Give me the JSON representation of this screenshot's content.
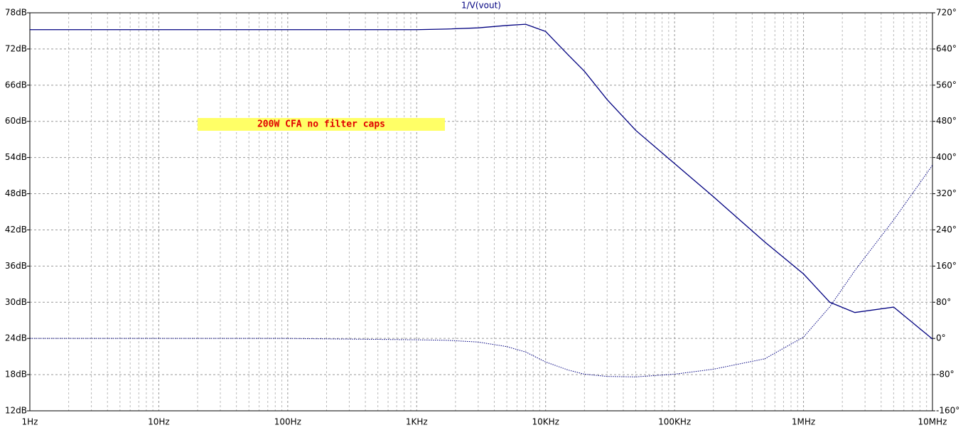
{
  "chart_data": {
    "type": "line",
    "title": "1/V(vout)",
    "annotation": "200W CFA no filter caps",
    "x_log": true,
    "grid": true,
    "x": [
      1,
      10,
      100,
      1000,
      1700,
      3000,
      5000,
      7000,
      10000,
      15000,
      20000,
      30000,
      50000,
      100000,
      200000,
      500000,
      1000000,
      1600000,
      2500000,
      5000000,
      10000000
    ],
    "xlim": [
      1,
      10000000
    ],
    "xticks": [
      {
        "value": 1,
        "label": "1Hz"
      },
      {
        "value": 10,
        "label": "10Hz"
      },
      {
        "value": 100,
        "label": "100Hz"
      },
      {
        "value": 1000,
        "label": "1KHz"
      },
      {
        "value": 10000,
        "label": "10KHz"
      },
      {
        "value": 100000,
        "label": "100KHz"
      },
      {
        "value": 1000000,
        "label": "1MHz"
      },
      {
        "value": 10000000,
        "label": "10MHz"
      }
    ],
    "ylim": [
      12,
      78
    ],
    "yticks": [
      {
        "value": 12,
        "label": "12dB"
      },
      {
        "value": 18,
        "label": "18dB"
      },
      {
        "value": 24,
        "label": "24dB"
      },
      {
        "value": 30,
        "label": "30dB"
      },
      {
        "value": 36,
        "label": "36dB"
      },
      {
        "value": 42,
        "label": "42dB"
      },
      {
        "value": 48,
        "label": "48dB"
      },
      {
        "value": 54,
        "label": "54dB"
      },
      {
        "value": 60,
        "label": "60dB"
      },
      {
        "value": 66,
        "label": "66dB"
      },
      {
        "value": 72,
        "label": "72dB"
      },
      {
        "value": 78,
        "label": "78dB"
      }
    ],
    "y2lim": [
      -160,
      720
    ],
    "y2ticks": [
      {
        "value": -160,
        "label": "-160°"
      },
      {
        "value": -80,
        "label": "-80°"
      },
      {
        "value": 0,
        "label": "0°"
      },
      {
        "value": 80,
        "label": "80°"
      },
      {
        "value": 160,
        "label": "160°"
      },
      {
        "value": 240,
        "label": "240°"
      },
      {
        "value": 320,
        "label": "320°"
      },
      {
        "value": 400,
        "label": "400°"
      },
      {
        "value": 480,
        "label": "480°"
      },
      {
        "value": 560,
        "label": "560°"
      },
      {
        "value": 640,
        "label": "640°"
      },
      {
        "value": 720,
        "label": "720°"
      }
    ],
    "series": [
      {
        "color": "#000080",
        "line_style": "solid",
        "values": [
          75.2,
          75.2,
          75.2,
          75.2,
          75.3,
          75.5,
          75.9,
          76.1,
          74.9,
          71,
          68.3,
          63.6,
          58.5,
          53,
          47.5,
          40,
          34.7,
          30,
          28.3,
          29.2,
          23.9
        ]
      },
      {
        "color": "#000080",
        "line_style": "dotted",
        "axis": "y2",
        "values": [
          0,
          0,
          0,
          -3,
          -4,
          -8,
          -18,
          -30,
          -52,
          -70,
          -79,
          -84,
          -85,
          -79,
          -68,
          -45,
          3,
          70,
          150,
          262,
          383
        ]
      }
    ]
  }
}
